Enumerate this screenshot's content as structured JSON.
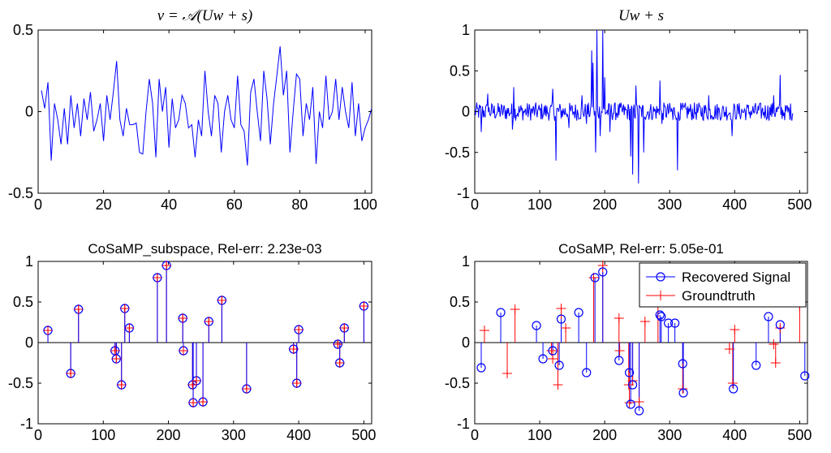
{
  "chart_data": [
    {
      "type": "line",
      "title": "v = 𝒜(Uw + s)",
      "xlim": [
        0,
        102
      ],
      "ylim": [
        -0.5,
        0.5
      ],
      "xticks": [
        "0",
        "20",
        "40",
        "60",
        "80",
        "100"
      ],
      "yticks": [
        "0.5",
        "0",
        "-0.5"
      ],
      "color": "#0000ff",
      "y": [
        0.13,
        0.02,
        0.18,
        -0.3,
        0.05,
        -0.05,
        -0.2,
        0.02,
        -0.2,
        0.1,
        -0.1,
        0.05,
        -0.15,
        0.08,
        -0.05,
        0.12,
        -0.12,
        -0.05,
        0.05,
        -0.18,
        0.1,
        -0.05,
        0.12,
        0.31,
        -0.05,
        -0.15,
        0.02,
        -0.08,
        -0.08,
        -0.07,
        -0.25,
        -0.26,
        0.0,
        0.2,
        0.05,
        -0.28,
        0.2,
        0.0,
        0.15,
        -0.22,
        0.08,
        -0.1,
        -0.05,
        0.1,
        0.05,
        -0.1,
        -0.08,
        -0.28,
        -0.05,
        -0.15,
        0.25,
        0.0,
        -0.15,
        0.1,
        0.05,
        -0.25,
        0.0,
        0.1,
        -0.05,
        -0.1,
        0.22,
        -0.08,
        -0.12,
        -0.33,
        0.12,
        0.2,
        0.0,
        -0.18,
        0.25,
        0.08,
        -0.2,
        0.05,
        0.22,
        0.4,
        0.1,
        0.25,
        -0.25,
        0.0,
        0.23,
        0.2,
        -0.15,
        0.05,
        -0.05,
        0.15,
        -0.32,
        0.0,
        -0.1,
        0.22,
        -0.05,
        0.0,
        0.2,
        -0.05,
        0.15,
        0.0,
        -0.1,
        0.18,
        -0.15,
        0.05,
        -0.18,
        -0.1,
        -0.05,
        0.02
      ]
    },
    {
      "type": "line",
      "title": "Uw + s",
      "xlim": [
        0,
        512
      ],
      "ylim": [
        -1,
        1
      ],
      "xticks": [
        "0",
        "100",
        "200",
        "300",
        "400",
        "500"
      ],
      "yticks": [
        "1",
        "0.5",
        "0",
        "-0.5",
        "-1"
      ],
      "color": "#0000ff",
      "noise_level": 0.07,
      "x_end": 490,
      "spikes": [
        [
          10,
          -0.25
        ],
        [
          20,
          0.22
        ],
        [
          58,
          -0.22
        ],
        [
          60,
          0.3
        ],
        [
          120,
          0.28
        ],
        [
          125,
          -0.6
        ],
        [
          145,
          -0.2
        ],
        [
          165,
          0.2
        ],
        [
          172,
          -0.15
        ],
        [
          180,
          0.75
        ],
        [
          182,
          0.6
        ],
        [
          186,
          -0.5
        ],
        [
          188,
          1.0
        ],
        [
          193,
          -0.3
        ],
        [
          197,
          1.0
        ],
        [
          200,
          0.42
        ],
        [
          208,
          -0.25
        ],
        [
          240,
          -0.55
        ],
        [
          243,
          -0.77
        ],
        [
          248,
          0.32
        ],
        [
          252,
          -0.88
        ],
        [
          260,
          -0.5
        ],
        [
          285,
          0.38
        ],
        [
          288,
          -0.15
        ],
        [
          305,
          -0.1
        ],
        [
          312,
          -0.72
        ],
        [
          360,
          0.2
        ],
        [
          396,
          -0.3
        ],
        [
          460,
          0.2
        ],
        [
          470,
          0.45
        ],
        [
          478,
          0.08
        ]
      ]
    },
    {
      "type": "stem",
      "title": "CoSaMP_subspace, Rel-err: 2.23e-03",
      "xlim": [
        0,
        512
      ],
      "ylim": [
        -1,
        1
      ],
      "xticks": [
        "0",
        "100",
        "200",
        "300",
        "400",
        "500"
      ],
      "yticks": [
        "1",
        "0.5",
        "0",
        "-0.5",
        "-1"
      ],
      "recovered_color": "#0000ff",
      "groundtruth_color": "#ff0000",
      "recovered": [
        [
          15,
          0.15
        ],
        [
          50,
          -0.38
        ],
        [
          62,
          0.41
        ],
        [
          118,
          -0.1
        ],
        [
          120,
          -0.2
        ],
        [
          128,
          -0.52
        ],
        [
          133,
          0.42
        ],
        [
          140,
          0.18
        ],
        [
          183,
          0.8
        ],
        [
          197,
          0.95
        ],
        [
          222,
          0.3
        ],
        [
          223,
          -0.1
        ],
        [
          237,
          -0.52
        ],
        [
          238,
          -0.74
        ],
        [
          243,
          -0.47
        ],
        [
          253,
          -0.73
        ],
        [
          262,
          0.26
        ],
        [
          282,
          0.52
        ],
        [
          320,
          -0.57
        ],
        [
          392,
          -0.08
        ],
        [
          397,
          -0.5
        ],
        [
          400,
          0.16
        ],
        [
          460,
          -0.02
        ],
        [
          463,
          -0.25
        ],
        [
          470,
          0.18
        ],
        [
          500,
          0.45
        ]
      ],
      "groundtruth": [
        [
          15,
          0.15
        ],
        [
          50,
          -0.38
        ],
        [
          62,
          0.41
        ],
        [
          118,
          -0.1
        ],
        [
          120,
          -0.2
        ],
        [
          128,
          -0.52
        ],
        [
          133,
          0.42
        ],
        [
          140,
          0.18
        ],
        [
          183,
          0.8
        ],
        [
          197,
          0.95
        ],
        [
          222,
          0.3
        ],
        [
          223,
          -0.1
        ],
        [
          237,
          -0.52
        ],
        [
          238,
          -0.74
        ],
        [
          243,
          -0.47
        ],
        [
          253,
          -0.73
        ],
        [
          262,
          0.26
        ],
        [
          282,
          0.52
        ],
        [
          320,
          -0.57
        ],
        [
          392,
          -0.08
        ],
        [
          397,
          -0.5
        ],
        [
          400,
          0.16
        ],
        [
          460,
          -0.02
        ],
        [
          463,
          -0.25
        ],
        [
          470,
          0.18
        ],
        [
          500,
          0.45
        ]
      ]
    },
    {
      "type": "stem",
      "title": "CoSaMP, Rel-err: 5.05e-01",
      "xlim": [
        0,
        512
      ],
      "ylim": [
        -1,
        1
      ],
      "xticks": [
        "0",
        "100",
        "200",
        "300",
        "400",
        "500"
      ],
      "yticks": [
        "1",
        "0.5",
        "0",
        "-0.5",
        "-1"
      ],
      "recovered_color": "#0000ff",
      "groundtruth_color": "#ff0000",
      "legend": {
        "position": "top-right",
        "recovered": "Recovered Signal",
        "groundtruth": "Groundtruth"
      },
      "recovered": [
        [
          10,
          -0.31
        ],
        [
          40,
          0.37
        ],
        [
          95,
          0.21
        ],
        [
          105,
          -0.2
        ],
        [
          120,
          -0.1
        ],
        [
          130,
          -0.28
        ],
        [
          133,
          0.29
        ],
        [
          160,
          0.37
        ],
        [
          172,
          -0.37
        ],
        [
          185,
          0.8
        ],
        [
          197,
          0.87
        ],
        [
          222,
          -0.22
        ],
        [
          238,
          -0.37
        ],
        [
          240,
          -0.76
        ],
        [
          243,
          -0.52
        ],
        [
          253,
          -0.84
        ],
        [
          285,
          0.34
        ],
        [
          287,
          0.32
        ],
        [
          298,
          0.24
        ],
        [
          308,
          0.24
        ],
        [
          320,
          -0.26
        ],
        [
          321,
          -0.62
        ],
        [
          398,
          -0.57
        ],
        [
          433,
          -0.28
        ],
        [
          452,
          0.32
        ],
        [
          470,
          0.22
        ],
        [
          508,
          -0.41
        ]
      ],
      "groundtruth": [
        [
          15,
          0.15
        ],
        [
          50,
          -0.38
        ],
        [
          62,
          0.41
        ],
        [
          118,
          -0.1
        ],
        [
          120,
          -0.2
        ],
        [
          128,
          -0.52
        ],
        [
          133,
          0.42
        ],
        [
          140,
          0.18
        ],
        [
          183,
          0.8
        ],
        [
          197,
          0.95
        ],
        [
          222,
          0.3
        ],
        [
          223,
          -0.1
        ],
        [
          237,
          -0.52
        ],
        [
          238,
          -0.74
        ],
        [
          243,
          -0.47
        ],
        [
          253,
          -0.73
        ],
        [
          262,
          0.26
        ],
        [
          282,
          0.52
        ],
        [
          320,
          -0.57
        ],
        [
          392,
          -0.08
        ],
        [
          397,
          -0.5
        ],
        [
          400,
          0.16
        ],
        [
          460,
          -0.02
        ],
        [
          463,
          -0.25
        ],
        [
          470,
          0.18
        ],
        [
          500,
          0.45
        ]
      ]
    }
  ]
}
